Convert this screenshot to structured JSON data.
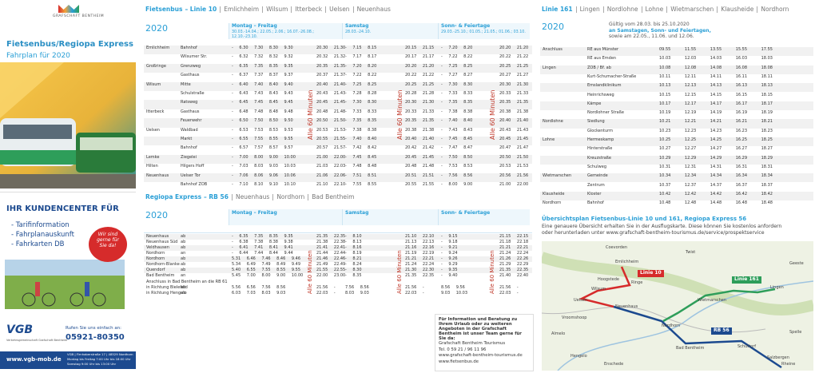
{
  "brand": {
    "logo_text": "GRAFSCHAFT BENTHEIM",
    "title": "Fietsenbus/Regiopa Express",
    "subtitle": "Fahrplan für 2020"
  },
  "ad": {
    "title": "IHR KUNDENCENTER FÜR",
    "items": [
      "- Tarifinformation",
      "- Fahrplanauskunft",
      "- Fahrkarten DB"
    ],
    "badge": "Wir sind gerne für Sie da!",
    "call": "Rufen Sie uns einfach an:",
    "phone": "05921-80350",
    "logo": "VGB",
    "logo_sub": "Verkehrsgemeinschaft Grafschaft Bentheim",
    "web": "www.vgb-mob.de",
    "address": [
      "VGB | Firnhaberstraße 17 | 48529 Nordhorn",
      "Montag bis Freitag 7:00 Uhr bis 18:00 Uhr",
      "Samstag 9:00 Uhr bis 13:00 Uhr"
    ]
  },
  "linie10": {
    "heading": {
      "prefix": "Fietsenbus",
      "line": "– Linie 10",
      "stops": [
        "Emlichheim",
        "Wilsum",
        "Itterbeck",
        "Uelsen",
        "Neuenhaus"
      ]
    },
    "year": "2020",
    "cols": [
      {
        "title": "Montag – Freitag",
        "note": "30.03.-14.04.; 22.05.; 2.06.; 16.07.-26.08.; 12.10.-23.10."
      },
      {
        "title": "Samstag",
        "note": "28.03.-24.10."
      },
      {
        "title": "Sonn- & Feiertage",
        "note": "29.03.-25.10.; 01.05.; 21.05.; 01.06.; 03.10."
      }
    ],
    "interval": "Alle 60 Minuten",
    "rows": [
      [
        "Emlichheim",
        "Bahnhof",
        "- 6.30 7.30 8.30 9.30",
        "20.30 21.30",
        "- 7.15 8.15",
        "20.15 21.15",
        "- 7.20 8.20",
        "20.20 21.20"
      ],
      [
        null,
        "Wilsumer Str.",
        "- 6.32 7.32 8.32 9.32",
        "20.32 21.32",
        "- 7.17 8.17",
        "20.17 21.17",
        "- 7.22 8.22",
        "20.22 21.22"
      ],
      [
        "Großringe",
        "Grenzweg",
        "- 6.35 7.35 8.35 9.35",
        "20.35 21.35",
        "- 7.20 8.20",
        "20.20 21.20",
        "- 7.25 8.25",
        "20.25 21.25"
      ],
      [
        null,
        "Gasthaus",
        "- 6.37 7.37 8.37 9.37",
        "20.37 21.37",
        "- 7.22 8.22",
        "20.22 21.22",
        "- 7.27 8.27",
        "20.27 21.27"
      ],
      [
        "Wilsum",
        "Mitte",
        "- 6.40 7.40 8.40 9.40",
        "20.40 21.40",
        "- 7.25 8.25",
        "20.25 21.25",
        "- 7.30 8.30",
        "20.30 21.30"
      ],
      [
        null,
        "Schulstraße",
        "- 6.43 7.43 8.43 9.43",
        "20.43 21.43",
        "- 7.28 8.28",
        "20.28 21.28",
        "- 7.33 8.33",
        "20.33 21.33"
      ],
      [
        null,
        "Ratsweg",
        "- 6.45 7.45 8.45 9.45",
        "20.45 21.45",
        "- 7.30 8.30",
        "20.30 21.30",
        "- 7.35 8.35",
        "20.35 21.35"
      ],
      [
        "Itterbeck",
        "Gasthaus",
        "- 6.48 7.48 8.48 9.48",
        "20.48 21.48",
        "- 7.33 8.33",
        "20.33 21.33",
        "- 7.38 8.38",
        "20.38 21.38"
      ],
      [
        null,
        "Feuerwehr",
        "- 6.50 7.50 8.50 9.50",
        "20.50 21.50",
        "- 7.35 8.35",
        "20.35 21.35",
        "- 7.40 8.40",
        "20.40 21.40"
      ],
      [
        "Uelsen",
        "Waldbad",
        "- 6.53 7.53 8.53 9.53",
        "20.53 21.53",
        "- 7.38 8.38",
        "20.38 21.38",
        "- 7.43 8.43",
        "20.43 21.43"
      ],
      [
        null,
        "Markt",
        "- 6.55 7.55 8.55 9.55",
        "20.55 21.55",
        "- 7.40 8.40",
        "20.40 21.40",
        "- 7.45 8.45",
        "20.45 21.45"
      ],
      [
        null,
        "Bahnhof",
        "- 6.57 7.57 8.57 9.57",
        "20.57 21.57",
        "- 7.42 8.42",
        "20.42 21.42",
        "- 7.47 8.47",
        "20.47 21.47"
      ],
      [
        "Lemke",
        "Ziegelei",
        "- 7.00 8.00 9.00 10.00",
        "21.00 22.00",
        "- 7.45 8.45",
        "20.45 21.45",
        "- 7.50 8.50",
        "20.50 21.50"
      ],
      [
        "Hilten",
        "Hilgers Hoff",
        "- 7.03 8.03 9.03 10.03",
        "21.03 22.03",
        "- 7.48 8.48",
        "20.48 21.48",
        "- 7.53 8.53",
        "20.53 21.53"
      ],
      [
        "Neuenhaus",
        "Uelser Tor",
        "- 7.06 8.06 9.06 10.06",
        "21.06 22.06",
        "- 7.51 8.51",
        "20.51 21.51",
        "- 7.56 8.56",
        "20.56 21.56"
      ],
      [
        null,
        "Bahnhof ZOB",
        "- 7.10 8.10 9.10 10.10",
        "21.10 22.10",
        "- 7.55 8.55",
        "20.55 21.55",
        "- 8.00 9.00",
        "21.00 22.00"
      ]
    ]
  },
  "rb56": {
    "heading": {
      "prefix": "Regiopa Express",
      "line": "– RB 56",
      "stops": [
        "Neuenhaus",
        "Nordhorn",
        "Bad Bentheim"
      ]
    },
    "year": "2020",
    "interval": "Alle 60 Minuten",
    "rows": [
      [
        "Neuenhaus",
        "ab",
        "- 6.35 7.35 8.35 9.35",
        "21.35 22.35",
        "- 8.10",
        "21.10 22.10",
        "- 9.15",
        "21.15 22.15"
      ],
      [
        "Neuenhaus Süd",
        "ab",
        "- 6.38 7.38 8.38 9.38",
        "21.38 22.38",
        "- 8.13",
        "21.13 22.13",
        "- 9.18",
        "21.18 22.18"
      ],
      [
        "Veldhausen",
        "ab",
        "- 6.41 7.41 8.41 9.41",
        "21.41 22.41",
        "- 8.16",
        "21.16 22.16",
        "- 9.21",
        "21.21 22.21"
      ],
      [
        "Nordhorn",
        "an",
        "- 6.44 7.44 8.44 9.44",
        "21.44 22.44",
        "- 8.19",
        "21.19 22.19",
        "- 9.24",
        "21.24 22.24"
      ],
      [
        "Nordhorn",
        "ab",
        "5.31 6.46 7.46 8.46 9.46",
        "21.46 22.46",
        "- 8.21",
        "21.21 22.21",
        "- 9.26",
        "21.26 22.26"
      ],
      [
        "Nordhorn-Blanke",
        "ab",
        "5.34 6.49 7.49 8.49 9.49",
        "21.49 22.49",
        "- 8.24",
        "21.24 22.24",
        "- 9.29",
        "21.29 22.29"
      ],
      [
        "Quendorf",
        "ab",
        "5.40 6.55 7.55 8.55 9.55",
        "21.55 22.55",
        "- 8.30",
        "21.30 22.30",
        "- 9.35",
        "21.35 22.35"
      ],
      [
        "Bad Bentheim",
        "an",
        "5.45 7.00 8.00 9.00 10.00",
        "22.00 23.00",
        "- 8.35",
        "21.35 22.35",
        "- 9.40",
        "21.40 22.40"
      ]
    ],
    "transfer_note": "Anschluss in Bad Bentheim an die RB 61",
    "transfer_rows": [
      [
        "in Richtung Bielefeld",
        "ab",
        "5.56 6.56 7.56 8.56",
        "21.56 -",
        "7.56 8.56",
        "21.56 -",
        "8.56 9.56",
        "21.56 -"
      ],
      [
        "in Richtung Hengelo",
        "ab",
        "6.03 7.03 8.03 9.03",
        "22.03 -",
        "8.03 9.03",
        "22.03 -",
        "9.03 10.03",
        "22.03 -"
      ]
    ]
  },
  "info": {
    "lead": "Für Information und Beratung zu Ihrem Urlaub oder zu weiteren Angeboten in der Grafschaft Bentheim ist unser Team gerne für Sie da:",
    "lines": [
      "Grafschaft Bentheim Tourismus",
      "Tel. 0 59 21 / 96 11 96",
      "www.grafschaft-bentheim-tourismus.de",
      "www.fietsenbus.de"
    ]
  },
  "linie161": {
    "heading": {
      "line": "Linie 161",
      "stops": [
        "Lingen",
        "Nordlohne",
        "Lohne",
        "Wietmarschen",
        "Klausheide",
        "Nordhorn"
      ]
    },
    "year": "2020",
    "note": [
      "Gültig vom 28.03. bis 25.10.2020",
      "an Samstagen, Sonn- und Feiertagen,",
      "sowie am 22.05., 11.06. und 12.06."
    ],
    "rows": [
      [
        "Anschluss",
        "RE aus Münster",
        "09.55 11.55 13.55 15.55 17.55"
      ],
      [
        null,
        "RE aus Emden",
        "10.03 12.03 14.03 16.03 18.03"
      ],
      [
        "Lingen",
        "ZOB / Bf. ab",
        "10.08 12.08 14.08 16.08 18.08"
      ],
      [
        null,
        "Kurt-Schumacher-Straße",
        "10.11 12.11 14.11 16.11 18.11"
      ],
      [
        null,
        "Emslandklinikum",
        "10.13 12.13 14.13 16.13 18.13"
      ],
      [
        null,
        "Heinrichsweg",
        "10.15 12.15 14.15 16.15 18.15"
      ],
      [
        null,
        "Kämpe",
        "10.17 12.17 14.17 16.17 18.17"
      ],
      [
        null,
        "Nordlohner Straße",
        "10.19 12.19 14.19 16.19 18.19"
      ],
      [
        "Nordlohne",
        "Siedlung",
        "10.21 12.21 14.21 16.21 18.21"
      ],
      [
        null,
        "Glockenturm",
        "10.23 12.23 14.23 16.23 18.23"
      ],
      [
        "Lohne",
        "Hermeskamp",
        "10.25 12.25 14.25 16.25 18.25"
      ],
      [
        null,
        "Hinterstraße",
        "10.27 12.27 14.27 16.27 18.27"
      ],
      [
        null,
        "Kreuzstraße",
        "10.29 12.29 14.29 16.29 18.29"
      ],
      [
        null,
        "Schulweg",
        "10.31 12.31 14.31 16.31 18.31"
      ],
      [
        "Wietmarschen",
        "Gemeinde",
        "10.34 12.34 14.34 16.34 18.34"
      ],
      [
        null,
        "Zentrum",
        "10.37 12.37 14.37 16.37 18.37"
      ],
      [
        "Klausheide",
        "Kloster",
        "10.42 12.42 14.42 16.42 18.42"
      ],
      [
        "Nordhorn",
        "Bahnhof",
        "10.48 12.48 14.48 16.48 18.48"
      ]
    ]
  },
  "overview": {
    "title": "Übersichtsplan Fietsenbus-Linie 10 und 161, Regiopa Express 56",
    "text": [
      "Eine genauere Übersicht erhalten Sie in der Ausflugskarte. Diese können Sie kostenlos anfordern",
      "oder herunterladen unter www.grafschaft-bentheim-tourismus.de/service/prospektservice"
    ],
    "map_labels": [
      "Coevorden",
      "Twist",
      "Emlichheim",
      "Linie 10",
      "Hoogstede",
      "Ringe",
      "Geeste",
      "Linie 161",
      "Uelsen",
      "Wilsum",
      "Neuenhaus",
      "Lingen",
      "Wietmarschen",
      "Vroomshoop",
      "Nordhorn",
      "Almelo",
      "RB 56",
      "Bad Bentheim",
      "Schüttorf",
      "Spelle",
      "Salzbergen",
      "Hengelo",
      "Enschede",
      "Rheine"
    ]
  }
}
